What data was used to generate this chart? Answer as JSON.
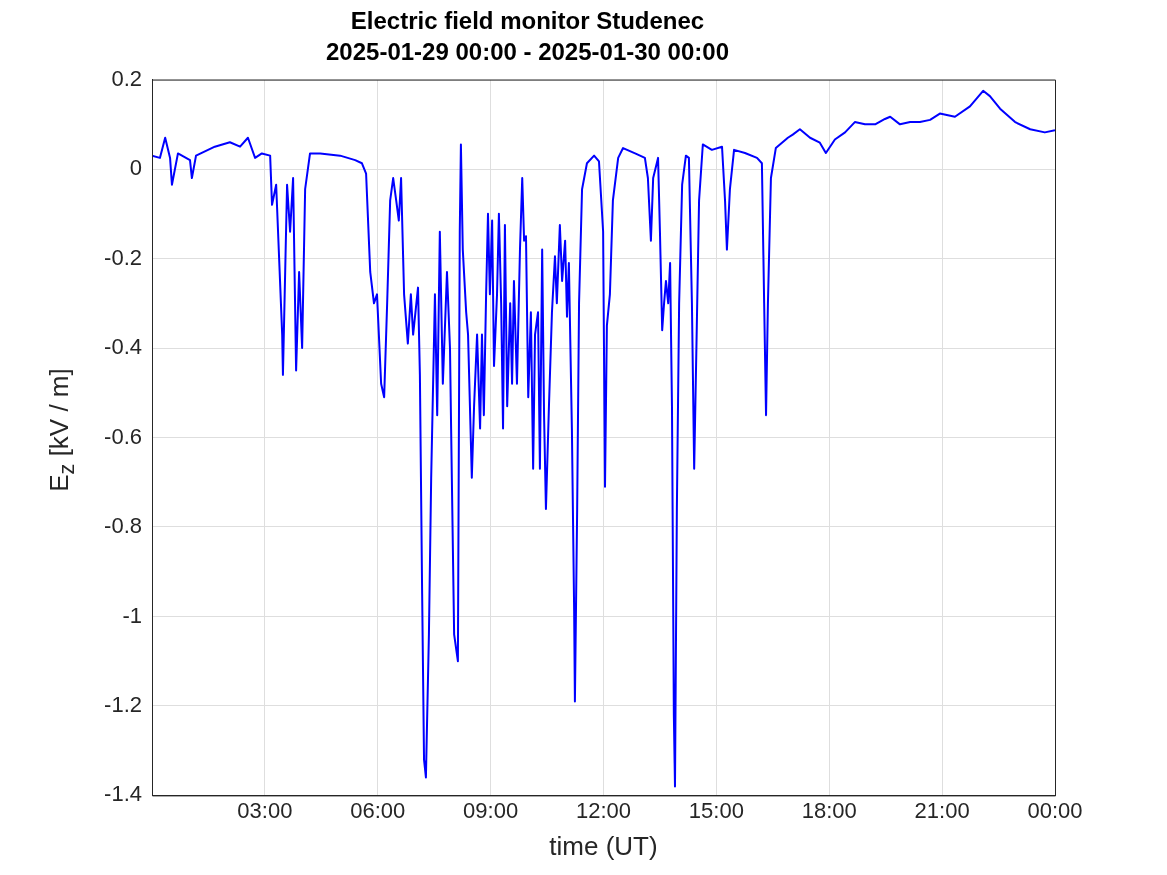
{
  "chart_data": {
    "type": "line",
    "title": "Electric field monitor Studenec",
    "subtitle": "2025-01-29 00:00 - 2025-01-30 00:00",
    "xlabel": "time (UT)",
    "ylabel": "E$_{z}$ [kV / m]",
    "xlim": [
      0,
      24
    ],
    "ylim": [
      -1.4,
      0.2
    ],
    "xticks": [
      {
        "value": 3,
        "label": "03:00"
      },
      {
        "value": 6,
        "label": "06:00"
      },
      {
        "value": 9,
        "label": "09:00"
      },
      {
        "value": 12,
        "label": "12:00"
      },
      {
        "value": 15,
        "label": "15:00"
      },
      {
        "value": 18,
        "label": "18:00"
      },
      {
        "value": 21,
        "label": "21:00"
      },
      {
        "value": 24,
        "label": "00:00"
      }
    ],
    "yticks": [
      0.2,
      0,
      -0.2,
      -0.4,
      -0.6,
      -0.8,
      {
        "value": -1,
        "label": "-1"
      },
      -1.2,
      -1.4
    ],
    "grid": true,
    "x": [
      0,
      0.21,
      0.35,
      0.48,
      0.53,
      0.69,
      1.01,
      1.06,
      1.17,
      1.67,
      2.07,
      2.34,
      2.55,
      2.74,
      2.92,
      3.14,
      3.19,
      3.3,
      3.46,
      3.48,
      3.59,
      3.67,
      3.75,
      3.83,
      3.91,
      3.99,
      4.07,
      4.2,
      4.47,
      5.0,
      5.4,
      5.58,
      5.69,
      5.8,
      5.9,
      5.98,
      6.09,
      6.17,
      6.25,
      6.33,
      6.41,
      6.49,
      6.56,
      6.62,
      6.7,
      6.8,
      6.88,
      6.94,
      7.07,
      7.12,
      7.18,
      7.23,
      7.28,
      7.36,
      7.42,
      7.52,
      7.58,
      7.65,
      7.73,
      7.84,
      7.92,
      7.95,
      8.03,
      8.13,
      8.18,
      8.21,
      8.26,
      8.35,
      8.4,
      8.5,
      8.56,
      8.64,
      8.72,
      8.77,
      8.82,
      8.88,
      8.93,
      8.98,
      9.04,
      9.09,
      9.17,
      9.22,
      9.28,
      9.33,
      9.38,
      9.44,
      9.52,
      9.57,
      9.62,
      9.7,
      9.78,
      9.84,
      9.89,
      9.94,
      10.0,
      10.07,
      10.13,
      10.18,
      10.26,
      10.31,
      10.37,
      10.42,
      10.47,
      10.55,
      10.63,
      10.71,
      10.76,
      10.84,
      10.9,
      10.98,
      11.03,
      11.08,
      11.16,
      11.22,
      11.24,
      11.3,
      11.35,
      11.43,
      11.56,
      11.75,
      11.88,
      11.99,
      12.04,
      12.09,
      12.17,
      12.25,
      12.39,
      12.52,
      12.87,
      13.1,
      13.18,
      13.26,
      13.32,
      13.45,
      13.5,
      13.56,
      13.61,
      13.66,
      13.72,
      13.77,
      13.82,
      13.87,
      13.9,
      13.95,
      14.01,
      14.09,
      14.19,
      14.27,
      14.35,
      14.41,
      14.48,
      14.54,
      14.64,
      14.88,
      15.15,
      15.23,
      15.28,
      15.36,
      15.47,
      15.76,
      16.08,
      16.21,
      16.27,
      16.32,
      16.37,
      16.45,
      16.58,
      16.9,
      17.03,
      17.22,
      17.49,
      17.75,
      17.91,
      18.15,
      18.42,
      18.68,
      18.95,
      19.22,
      19.48,
      19.62,
      19.88,
      20.15,
      20.41,
      20.68,
      20.94,
      21.34,
      21.74,
      22.09,
      22.27,
      22.54,
      22.94,
      23.34,
      23.73,
      24
    ],
    "series": [
      {
        "color": "#0000ff",
        "values": [
          0.03,
          0.025,
          0.07,
          0.025,
          -0.035,
          0.035,
          0.02,
          -0.02,
          0.03,
          0.05,
          0.06,
          0.05,
          0.07,
          0.025,
          0.035,
          0.03,
          -0.08,
          -0.035,
          -0.37,
          -0.46,
          -0.035,
          -0.14,
          -0.02,
          -0.45,
          -0.23,
          -0.4,
          -0.045,
          0.035,
          0.035,
          0.03,
          0.02,
          0.013,
          -0.01,
          -0.23,
          -0.3,
          -0.28,
          -0.48,
          -0.51,
          -0.3,
          -0.07,
          -0.02,
          -0.07,
          -0.115,
          -0.02,
          -0.28,
          -0.39,
          -0.28,
          -0.37,
          -0.265,
          -0.46,
          -0.95,
          -1.32,
          -1.36,
          -1.04,
          -0.69,
          -0.28,
          -0.55,
          -0.14,
          -0.48,
          -0.23,
          -0.4,
          -0.58,
          -1.04,
          -1.1,
          -0.14,
          0.055,
          -0.18,
          -0.32,
          -0.37,
          -0.69,
          -0.53,
          -0.37,
          -0.58,
          -0.37,
          -0.55,
          -0.28,
          -0.1,
          -0.28,
          -0.115,
          -0.44,
          -0.28,
          -0.1,
          -0.3,
          -0.58,
          -0.125,
          -0.53,
          -0.3,
          -0.48,
          -0.25,
          -0.48,
          -0.18,
          -0.02,
          -0.16,
          -0.15,
          -0.51,
          -0.32,
          -0.67,
          -0.37,
          -0.32,
          -0.67,
          -0.18,
          -0.55,
          -0.76,
          -0.53,
          -0.32,
          -0.195,
          -0.3,
          -0.125,
          -0.25,
          -0.16,
          -0.33,
          -0.21,
          -0.58,
          -0.99,
          -1.19,
          -0.76,
          -0.3,
          -0.045,
          0.013,
          0.03,
          0.017,
          -0.14,
          -0.71,
          -0.35,
          -0.28,
          -0.07,
          0.025,
          0.047,
          0.034,
          0.025,
          -0.02,
          -0.16,
          -0.02,
          0.025,
          -0.14,
          -0.36,
          -0.3,
          -0.25,
          -0.3,
          -0.21,
          -0.53,
          -1.22,
          -1.38,
          -0.76,
          -0.3,
          -0.035,
          0.03,
          0.025,
          -0.3,
          -0.67,
          -0.35,
          -0.07,
          0.055,
          0.043,
          0.05,
          -0.07,
          -0.18,
          -0.045,
          0.043,
          0.036,
          0.025,
          0.013,
          -0.3,
          -0.55,
          -0.3,
          -0.02,
          0.047,
          0.07,
          0.077,
          0.089,
          0.07,
          0.059,
          0.036,
          0.066,
          0.082,
          0.105,
          0.1,
          0.1,
          0.112,
          0.117,
          0.1,
          0.105,
          0.105,
          0.11,
          0.124,
          0.117,
          0.14,
          0.175,
          0.163,
          0.135,
          0.105,
          0.089,
          0.082,
          0.087
        ]
      }
    ]
  }
}
